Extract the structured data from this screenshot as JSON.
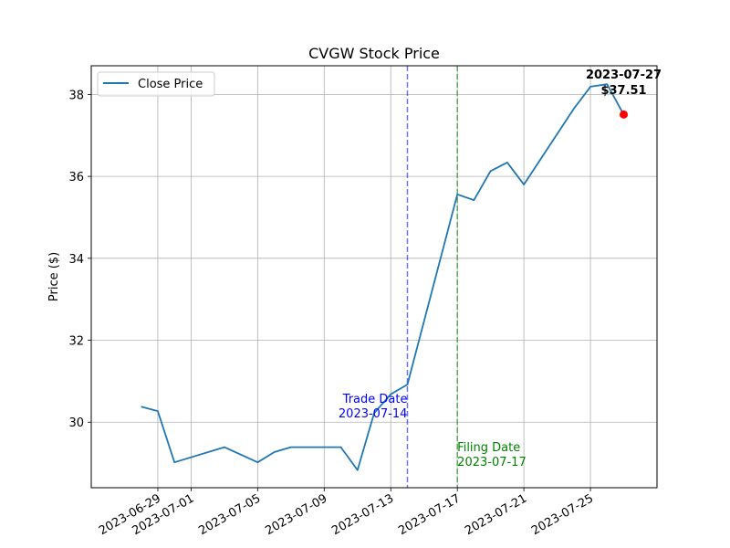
{
  "chart_data": {
    "type": "line",
    "title": "CVGW Stock Price",
    "xlabel": "",
    "ylabel": "Price ($)",
    "ylim": [
      28.4,
      38.7
    ],
    "yticks": [
      30,
      32,
      34,
      36,
      38
    ],
    "xlim": [
      "2023-06-25",
      "2023-07-29"
    ],
    "xticks": [
      "2023-06-29",
      "2023-07-01",
      "2023-07-05",
      "2023-07-09",
      "2023-07-13",
      "2023-07-17",
      "2023-07-21",
      "2023-07-25"
    ],
    "grid": true,
    "legend": "upper-left",
    "series": [
      {
        "name": "Close Price",
        "color": "#1f77b4",
        "x": [
          "2023-06-28",
          "2023-06-29",
          "2023-06-30",
          "2023-07-03",
          "2023-07-05",
          "2023-07-06",
          "2023-07-07",
          "2023-07-10",
          "2023-07-11",
          "2023-07-12",
          "2023-07-13",
          "2023-07-14",
          "2023-07-17",
          "2023-07-18",
          "2023-07-19",
          "2023-07-20",
          "2023-07-21",
          "2023-07-24",
          "2023-07-25",
          "2023-07-26",
          "2023-07-27"
        ],
        "y": [
          30.38,
          30.27,
          29.02,
          29.39,
          29.02,
          29.27,
          29.39,
          29.39,
          28.83,
          30.22,
          30.68,
          30.92,
          35.56,
          35.42,
          36.13,
          36.34,
          35.8,
          37.65,
          38.19,
          38.25,
          37.51
        ]
      }
    ],
    "annotations": {
      "trade_date": {
        "label": "Trade Date",
        "date": "2023-07-14",
        "color": "#0000ff"
      },
      "filing_date": {
        "label": "Filing Date",
        "date": "2023-07-17",
        "color": "#008000"
      },
      "last_point": {
        "date": "2023-07-27",
        "price_label": "$37.51",
        "value": 37.51,
        "marker_color": "#ff0000"
      }
    }
  }
}
